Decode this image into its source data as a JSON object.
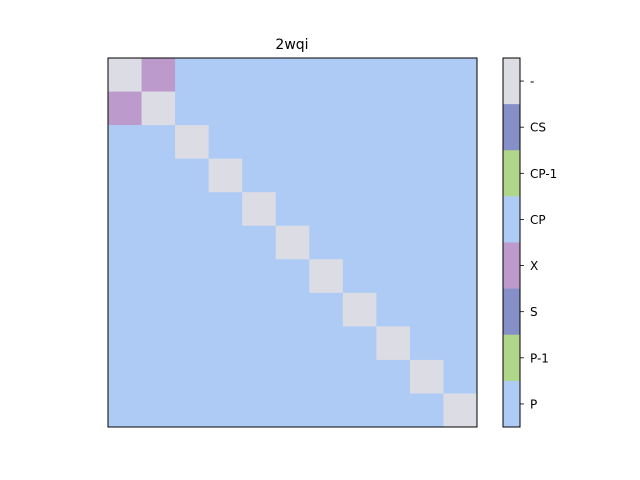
{
  "chart_data": {
    "type": "heatmap",
    "title": "2wqi",
    "xlabel": "",
    "ylabel": "",
    "rows": 11,
    "cols": 11,
    "categories": [
      "-",
      "CS",
      "CP-1",
      "CP",
      "X",
      "S",
      "P-1",
      "P"
    ],
    "category_colors": {
      "-": "#dcdce4",
      "CS": "#8590c8",
      "CP-1": "#b0d68a",
      "CP": "#aecbf6",
      "X": "#bc9bcc",
      "S": "#8590c8",
      "P-1": "#b0d68a",
      "P": "#aecbf6"
    },
    "matrix": [
      [
        "-",
        "X",
        "CP",
        "CP",
        "CP",
        "CP",
        "CP",
        "CP",
        "CP",
        "CP",
        "CP"
      ],
      [
        "X",
        "-",
        "CP",
        "CP",
        "CP",
        "CP",
        "CP",
        "CP",
        "CP",
        "CP",
        "CP"
      ],
      [
        "CP",
        "CP",
        "-",
        "CP",
        "CP",
        "CP",
        "CP",
        "CP",
        "CP",
        "CP",
        "CP"
      ],
      [
        "CP",
        "CP",
        "CP",
        "-",
        "CP",
        "CP",
        "CP",
        "CP",
        "CP",
        "CP",
        "CP"
      ],
      [
        "CP",
        "CP",
        "CP",
        "CP",
        "-",
        "CP",
        "CP",
        "CP",
        "CP",
        "CP",
        "CP"
      ],
      [
        "CP",
        "CP",
        "CP",
        "CP",
        "CP",
        "-",
        "CP",
        "CP",
        "CP",
        "CP",
        "CP"
      ],
      [
        "CP",
        "CP",
        "CP",
        "CP",
        "CP",
        "CP",
        "-",
        "CP",
        "CP",
        "CP",
        "CP"
      ],
      [
        "CP",
        "CP",
        "CP",
        "CP",
        "CP",
        "CP",
        "CP",
        "-",
        "CP",
        "CP",
        "CP"
      ],
      [
        "CP",
        "CP",
        "CP",
        "CP",
        "CP",
        "CP",
        "CP",
        "CP",
        "-",
        "CP",
        "CP"
      ],
      [
        "CP",
        "CP",
        "CP",
        "CP",
        "CP",
        "CP",
        "CP",
        "CP",
        "CP",
        "-",
        "CP"
      ],
      [
        "CP",
        "CP",
        "CP",
        "CP",
        "CP",
        "CP",
        "CP",
        "CP",
        "CP",
        "CP",
        "-"
      ]
    ],
    "colorbar": {
      "labels_top_to_bottom": [
        "-",
        "CS",
        "CP-1",
        "CP",
        "X",
        "S",
        "P-1",
        "P"
      ]
    },
    "xticks": [],
    "yticks": []
  }
}
